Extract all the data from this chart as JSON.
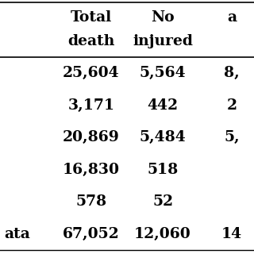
{
  "headers_line1": [
    "Total",
    "No",
    "a"
  ],
  "headers_line2": [
    "death",
    "injured",
    ""
  ],
  "rows": [
    [
      "25,604",
      "5,564",
      "8,"
    ],
    [
      "3,171",
      "442",
      "2"
    ],
    [
      "20,869",
      "5,484",
      "5,"
    ],
    [
      "16,830",
      "518",
      ""
    ],
    [
      "578",
      "52",
      ""
    ],
    [
      "67,052",
      "12,060",
      "14"
    ]
  ],
  "row_labels": [
    "",
    "",
    "",
    "",
    "",
    "ata"
  ],
  "background_color": "#ffffff",
  "text_color": "#000000",
  "font_size": 13.5,
  "header_font_size": 13.5
}
